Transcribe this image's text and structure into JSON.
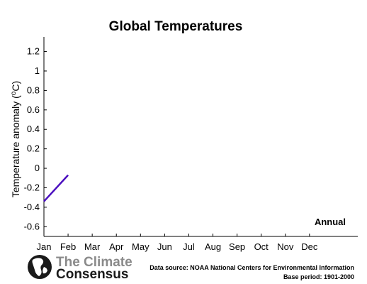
{
  "chart_data": {
    "type": "line",
    "title": "Global Temperatures",
    "ylabel": "Temperature anomaly (°C)",
    "ylabel_parts": {
      "prefix": "Temperature anomaly (",
      "superscript": "o",
      "suffix": "C)"
    },
    "xlabel": "",
    "categories": [
      "Jan",
      "Feb",
      "Mar",
      "Apr",
      "May",
      "Jun",
      "Jul",
      "Aug",
      "Sep",
      "Oct",
      "Nov",
      "Dec"
    ],
    "yticks": [
      "1.2",
      "1",
      "0.8",
      "0.6",
      "0.4",
      "0.2",
      "0",
      "-0.2",
      "-0.4",
      "-0.6"
    ],
    "ylim": [
      -0.7,
      1.35
    ],
    "xlim": [
      1,
      14
    ],
    "grid": false,
    "legend": "none",
    "annotation": "Annual",
    "series": [
      {
        "color": "#4b0fbf",
        "x": [
          1,
          2
        ],
        "y": [
          -0.34,
          -0.07
        ]
      }
    ]
  },
  "logo": {
    "line1": "The Climate",
    "line2": "Consensus"
  },
  "footer": {
    "source": "Data source: NOAA National Centers for Environmental Information",
    "base_period": "Base period: 1901-2000"
  }
}
